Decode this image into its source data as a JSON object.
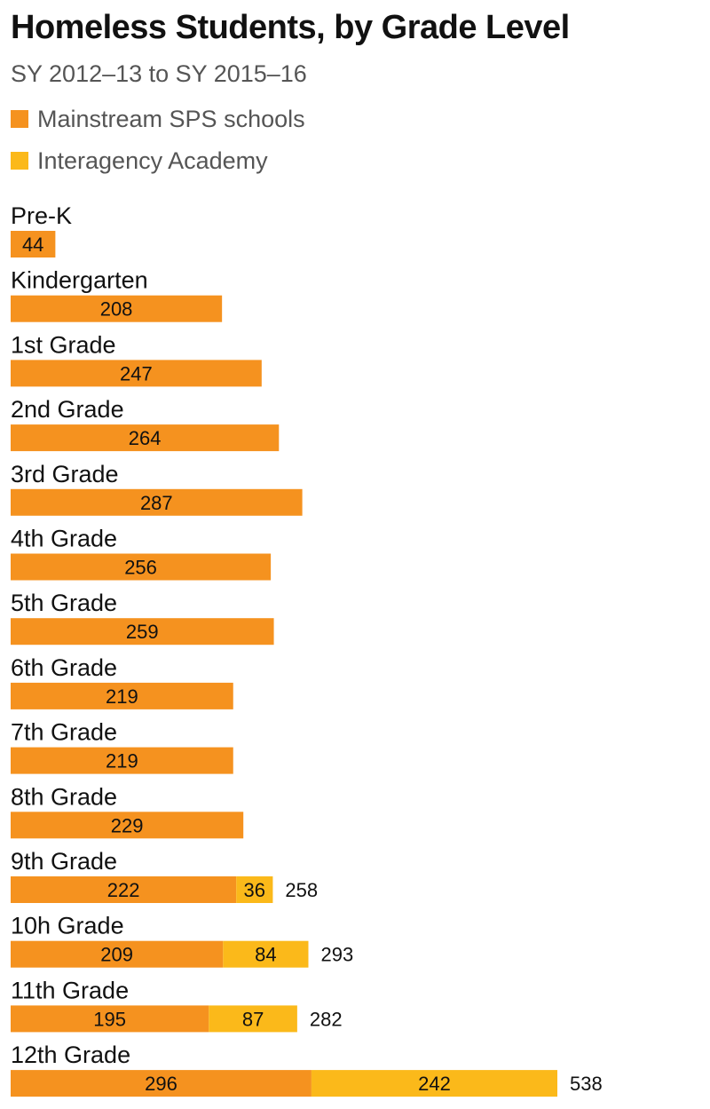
{
  "chart_data": {
    "type": "bar",
    "orientation": "horizontal",
    "stacked": true,
    "title": "Homeless Students, by Grade Level",
    "subtitle": "SY 2012–13 to SY 2015–16",
    "categories": [
      "Pre-K",
      "Kindergarten",
      "1st Grade",
      "2nd Grade",
      "3rd Grade",
      "4th Grade",
      "5th Grade",
      "6th Grade",
      "7th Grade",
      "8th Grade",
      "9th Grade",
      "10h Grade",
      "11th Grade",
      "12th Grade"
    ],
    "series": [
      {
        "name": "Mainstream SPS schools",
        "color": "#F5921F",
        "values": [
          44,
          208,
          247,
          264,
          287,
          256,
          259,
          219,
          219,
          229,
          222,
          209,
          195,
          296
        ]
      },
      {
        "name": "Interagency Academy",
        "color": "#FBB91A",
        "values": [
          null,
          null,
          null,
          null,
          null,
          null,
          null,
          null,
          null,
          null,
          36,
          84,
          87,
          242
        ]
      }
    ],
    "totals": [
      null,
      null,
      null,
      null,
      null,
      null,
      null,
      null,
      null,
      null,
      258,
      293,
      282,
      538
    ],
    "xlim": [
      0,
      538
    ],
    "grid": false,
    "legend_position": "top-left"
  }
}
